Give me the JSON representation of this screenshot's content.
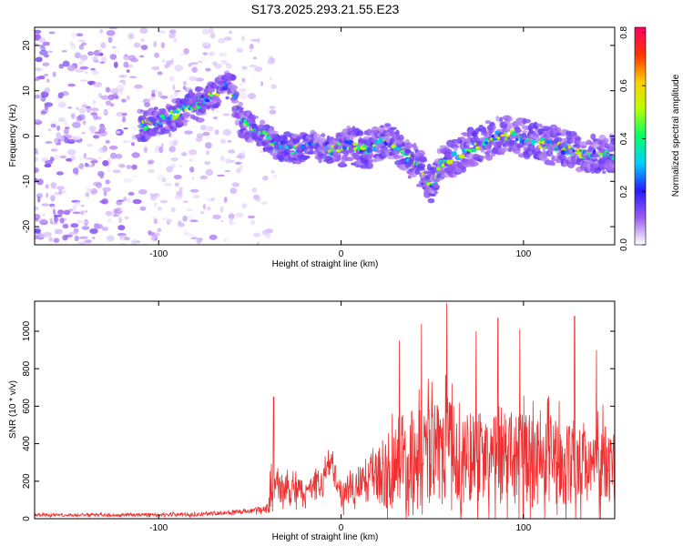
{
  "title": "S173.2025.293.21.55.E23",
  "chart_data": [
    {
      "type": "heatmap",
      "xlabel": "Height of straight line (km)",
      "ylabel": "Frequency (Hz)",
      "xlim": [
        -168,
        150
      ],
      "ylim": [
        -24,
        24
      ],
      "xticks": [
        -100,
        0,
        100
      ],
      "yticks": [
        -20,
        -10,
        0,
        10,
        20
      ],
      "colorbar": {
        "label": "Normalized spectral amplitude",
        "range": [
          0,
          0.82
        ],
        "ticks": [
          0.0,
          0.2,
          0.4,
          0.6,
          0.8
        ],
        "colors": [
          "#ffffff",
          "#9b5cf0",
          "#2a1aff",
          "#00d0ff",
          "#00ff66",
          "#b8ff00",
          "#ffcc00",
          "#ff3300",
          "#ff0066"
        ]
      },
      "ridge": {
        "x": [
          -110,
          -95,
          -80,
          -70,
          -60,
          -55,
          -45,
          -35,
          -25,
          -15,
          -5,
          5,
          15,
          25,
          35,
          45,
          50,
          55,
          65,
          75,
          85,
          95,
          105,
          115,
          125,
          135,
          148
        ],
        "freq": [
          2,
          4,
          7,
          9,
          12,
          3,
          1,
          -2,
          -3,
          -2,
          -3,
          -2,
          -3,
          -1,
          -4,
          -8,
          -11,
          -6,
          -4,
          -2,
          0,
          0,
          -1,
          -2,
          -3,
          -4,
          -4
        ]
      },
      "noise_region": [
        -168,
        -40
      ]
    },
    {
      "type": "line",
      "xlabel": "Height of straight line (km)",
      "ylabel": "SNR (10 * v/v)",
      "xlim": [
        -168,
        150
      ],
      "ylim": [
        0,
        1160
      ],
      "xticks": [
        -100,
        0,
        100
      ],
      "yticks": [
        0,
        200,
        400,
        600,
        800,
        1000
      ],
      "color": "#f03030",
      "envelope": {
        "x": [
          -168,
          -120,
          -80,
          -50,
          -40,
          -38,
          -36,
          -30,
          -20,
          -10,
          -6,
          0,
          10,
          15,
          20,
          30,
          35,
          40,
          50,
          55,
          60,
          70,
          80,
          90,
          100,
          110,
          120,
          130,
          140,
          150
        ],
        "base": [
          20,
          20,
          25,
          40,
          60,
          170,
          200,
          160,
          150,
          200,
          330,
          120,
          200,
          220,
          250,
          320,
          350,
          350,
          380,
          400,
          380,
          360,
          340,
          330,
          340,
          320,
          320,
          330,
          320,
          300
        ],
        "spread": [
          15,
          15,
          20,
          25,
          40,
          350,
          200,
          150,
          140,
          150,
          160,
          120,
          200,
          260,
          320,
          480,
          520,
          500,
          560,
          600,
          580,
          520,
          500,
          460,
          500,
          480,
          440,
          460,
          430,
          380
        ]
      },
      "peaks": [
        {
          "x": -37,
          "y": 650
        },
        {
          "x": 32,
          "y": 950
        },
        {
          "x": 44,
          "y": 1040
        },
        {
          "x": 58,
          "y": 1150
        },
        {
          "x": 74,
          "y": 1000
        },
        {
          "x": 86,
          "y": 1070
        },
        {
          "x": 98,
          "y": 1010
        },
        {
          "x": 128,
          "y": 1080
        },
        {
          "x": 140,
          "y": 900
        }
      ]
    }
  ]
}
